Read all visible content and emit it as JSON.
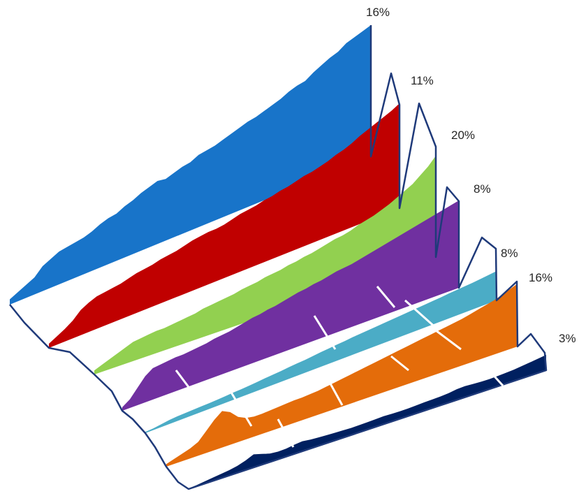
{
  "chart_data": {
    "type": "area",
    "title": "",
    "xlabel": "",
    "ylabel": "",
    "ylim": [
      0,
      1
    ],
    "grid": false,
    "legend": "none",
    "series": [
      {
        "end_label": "16%",
        "color": "#1874c9",
        "values": [
          0.04,
          0.07,
          0.1,
          0.13,
          0.19,
          0.22,
          0.25,
          0.26,
          0.27,
          0.28,
          0.3,
          0.33,
          0.35,
          0.36,
          0.39,
          0.41,
          0.44,
          0.46,
          0.48,
          0.47,
          0.49,
          0.51,
          0.52,
          0.55,
          0.56,
          0.57,
          0.59,
          0.61,
          0.63,
          0.65,
          0.66,
          0.68,
          0.7,
          0.72,
          0.75,
          0.77,
          0.78,
          0.82,
          0.85,
          0.88,
          0.9,
          0.94,
          0.96,
          0.98,
          1.0
        ]
      },
      {
        "end_label": "11%",
        "color": "#c00000",
        "values": [
          0.04,
          0.08,
          0.12,
          0.17,
          0.24,
          0.28,
          0.31,
          0.32,
          0.33,
          0.34,
          0.36,
          0.38,
          0.39,
          0.4,
          0.42,
          0.43,
          0.44,
          0.46,
          0.48,
          0.49,
          0.5,
          0.5,
          0.51,
          0.53,
          0.55,
          0.56,
          0.57,
          0.59,
          0.6,
          0.62,
          0.63,
          0.65,
          0.67,
          0.68,
          0.7,
          0.72,
          0.75,
          0.77,
          0.8,
          0.84,
          0.87,
          0.9,
          0.93,
          0.96,
          1.0
        ]
      },
      {
        "end_label": "20%",
        "color": "#92d050",
        "values": [
          0.04,
          0.07,
          0.1,
          0.13,
          0.16,
          0.19,
          0.2,
          0.21,
          0.22,
          0.22,
          0.23,
          0.24,
          0.25,
          0.26,
          0.28,
          0.29,
          0.3,
          0.31,
          0.32,
          0.34,
          0.35,
          0.36,
          0.38,
          0.39,
          0.4,
          0.42,
          0.43,
          0.45,
          0.46,
          0.48,
          0.5,
          0.52,
          0.53,
          0.55,
          0.58,
          0.6,
          0.62,
          0.65,
          0.68,
          0.72,
          0.76,
          0.8,
          0.86,
          0.92,
          1.0
        ]
      },
      {
        "end_label": "8%",
        "color": "#7030a0",
        "values": [
          0.04,
          0.1,
          0.2,
          0.3,
          0.36,
          0.37,
          0.38,
          0.39,
          0.39,
          0.4,
          0.41,
          0.42,
          0.44,
          0.45,
          0.46,
          0.48,
          0.5,
          0.52,
          0.53,
          0.55,
          0.56,
          0.58,
          0.6,
          0.62,
          0.63,
          0.65,
          0.66,
          0.68,
          0.7,
          0.71,
          0.72,
          0.74,
          0.76,
          0.78,
          0.8,
          0.82,
          0.84,
          0.86,
          0.88,
          0.9,
          0.92,
          0.94,
          0.96,
          0.98,
          1.0
        ]
      },
      {
        "end_label": "8%",
        "color": "#4bacc6",
        "values": [
          0.04,
          0.06,
          0.1,
          0.14,
          0.16,
          0.17,
          0.18,
          0.19,
          0.2,
          0.21,
          0.23,
          0.25,
          0.26,
          0.28,
          0.3,
          0.33,
          0.35,
          0.37,
          0.4,
          0.42,
          0.44,
          0.47,
          0.5,
          0.52,
          0.55,
          0.57,
          0.6,
          0.62,
          0.64,
          0.66,
          0.68,
          0.7,
          0.72,
          0.74,
          0.76,
          0.78,
          0.8,
          0.82,
          0.85,
          0.87,
          0.89,
          0.91,
          0.94,
          0.97,
          1.0
        ]
      },
      {
        "end_label": "16%",
        "color": "#e46c0a",
        "values": [
          0.04,
          0.08,
          0.12,
          0.16,
          0.22,
          0.35,
          0.48,
          0.58,
          0.52,
          0.4,
          0.34,
          0.32,
          0.32,
          0.33,
          0.34,
          0.35,
          0.36,
          0.36,
          0.37,
          0.38,
          0.4,
          0.42,
          0.44,
          0.46,
          0.48,
          0.5,
          0.52,
          0.54,
          0.56,
          0.58,
          0.6,
          0.62,
          0.64,
          0.66,
          0.68,
          0.7,
          0.72,
          0.74,
          0.77,
          0.8,
          0.83,
          0.86,
          0.9,
          0.95,
          1.0
        ]
      },
      {
        "end_label": "3%",
        "color": "#002060",
        "values": [
          0.04,
          0.08,
          0.15,
          0.22,
          0.28,
          0.35,
          0.45,
          0.62,
          0.85,
          0.7,
          0.55,
          0.5,
          0.52,
          0.6,
          0.65,
          0.58,
          0.55,
          0.52,
          0.5,
          0.48,
          0.46,
          0.47,
          0.48,
          0.5,
          0.52,
          0.5,
          0.49,
          0.5,
          0.52,
          0.55,
          0.56,
          0.58,
          0.62,
          0.7,
          0.72,
          0.69,
          0.66,
          0.65,
          0.67,
          0.7,
          0.74,
          0.8,
          0.86,
          0.93,
          1.0
        ]
      }
    ]
  }
}
